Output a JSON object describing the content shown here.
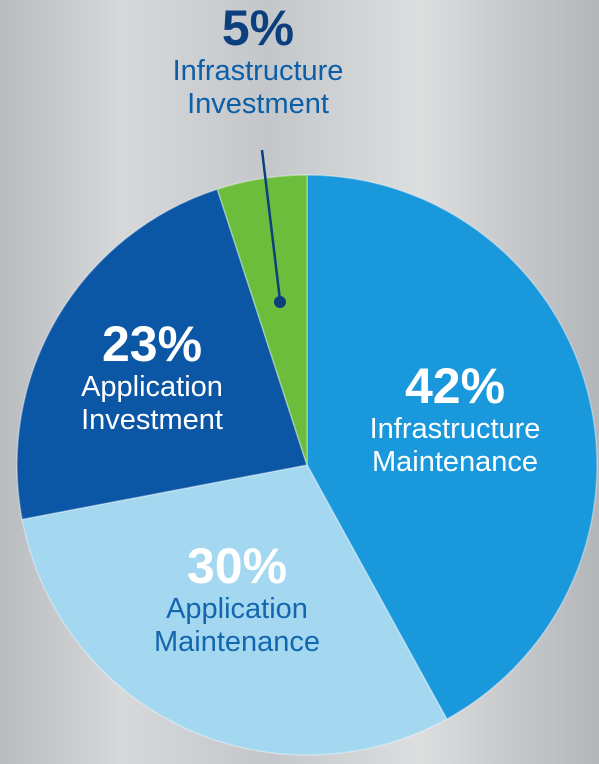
{
  "chart_data": {
    "type": "pie",
    "categories": [
      "Infrastructure Maintenance",
      "Application Maintenance",
      "Application Investment",
      "Infrastructure Investment"
    ],
    "values": [
      42,
      30,
      23,
      5
    ],
    "value_labels": [
      "42%",
      "30%",
      "23%",
      "5%"
    ],
    "colors": [
      "#1a98dc",
      "#a3d8f0",
      "#0b57a6",
      "#6cbd3c"
    ]
  }
}
